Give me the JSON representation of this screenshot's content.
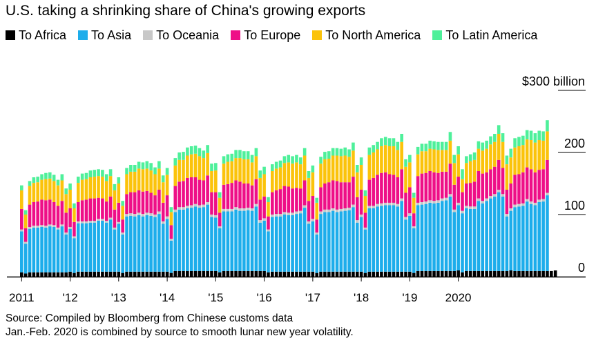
{
  "title": "U.S. taking a shrinking share of China's growing exports",
  "legend": [
    {
      "label": "To Africa",
      "color": "#000000"
    },
    {
      "label": "To Asia",
      "color": "#1dadeb"
    },
    {
      "label": "To Oceania",
      "color": "#c8c8c8"
    },
    {
      "label": "To Europe",
      "color": "#ee0f87"
    },
    {
      "label": "To North America",
      "color": "#fbc30b"
    },
    {
      "label": "To Latin America",
      "color": "#4ef09a"
    }
  ],
  "source_lines": [
    "Source: Compiled by Bloomberg from Chinese customs data",
    "Jan.-Feb. 2020 is combined by source to smooth lunar new year volatility."
  ],
  "chart_data": {
    "type": "bar",
    "stacked": true,
    "unit": "$ billion",
    "y_tick_labels": [
      "0",
      "100",
      "200",
      "$300 billion"
    ],
    "y_ticks": [
      0,
      100,
      200,
      300
    ],
    "ylim": [
      0,
      310
    ],
    "x_tick_labels": [
      "2011",
      "'12",
      "'13",
      "'14",
      "'15",
      "'16",
      "'17",
      "'18",
      "'19",
      "2020"
    ],
    "x_tick_years": [
      2011,
      2012,
      2013,
      2014,
      2015,
      2016,
      2017,
      2018,
      2019,
      2020
    ],
    "start_year": 2011,
    "start_month": 1,
    "grid": false,
    "legend_position": "top",
    "series": [
      {
        "name": "To Africa",
        "color": "#000000",
        "values": [
          7,
          5,
          7,
          7,
          7,
          7,
          7,
          7,
          7,
          7,
          7,
          7,
          8,
          6,
          8,
          8,
          8,
          8,
          8,
          8,
          8,
          8,
          8,
          8,
          8,
          6,
          8,
          8,
          8,
          8,
          8,
          8,
          8,
          8,
          8,
          8,
          8,
          6,
          9,
          9,
          9,
          9,
          9,
          9,
          9,
          9,
          9,
          9,
          9,
          7,
          9,
          9,
          9,
          9,
          9,
          9,
          9,
          9,
          9,
          9,
          9,
          7,
          8,
          8,
          8,
          8,
          8,
          8,
          8,
          8,
          8,
          8,
          8,
          6,
          8,
          8,
          8,
          8,
          8,
          8,
          8,
          8,
          8,
          8,
          8,
          6,
          8,
          8,
          8,
          8,
          8,
          8,
          8,
          8,
          8,
          8,
          8,
          6,
          9,
          9,
          9,
          9,
          9,
          9,
          9,
          9,
          9,
          9,
          10,
          7,
          9,
          9,
          9,
          9,
          9,
          9,
          9,
          9,
          9,
          9,
          9,
          10,
          9,
          9,
          9,
          9,
          9,
          9,
          9,
          9,
          9,
          9,
          10
        ]
      },
      {
        "name": "To Asia",
        "color": "#1dadeb",
        "values": [
          66,
          48,
          70,
          72,
          72,
          73,
          72,
          74,
          73,
          69,
          74,
          61,
          69,
          56,
          78,
          78,
          78,
          79,
          79,
          82,
          82,
          79,
          84,
          68,
          77,
          62,
          89,
          90,
          89,
          91,
          89,
          91,
          90,
          88,
          93,
          77,
          85,
          52,
          95,
          99,
          99,
          101,
          102,
          104,
          102,
          103,
          107,
          87,
          86,
          71,
          96,
          96,
          96,
          99,
          97,
          97,
          98,
          97,
          104,
          78,
          81,
          66,
          88,
          89,
          89,
          92,
          91,
          91,
          93,
          94,
          103,
          77,
          81,
          62,
          93,
          96,
          96,
          98,
          96,
          97,
          98,
          99,
          104,
          79,
          88,
          70,
          102,
          102,
          105,
          106,
          107,
          107,
          107,
          105,
          114,
          84,
          90,
          72,
          106,
          107,
          108,
          110,
          109,
          110,
          113,
          114,
          120,
          95,
          105,
          95,
          101,
          100,
          100,
          113,
          109,
          113,
          117,
          120,
          127,
          120,
          88,
          96,
          103,
          104,
          105,
          112,
          108,
          106,
          111,
          112,
          122
        ]
      },
      {
        "name": "To Oceania",
        "color": "#c8c8c8",
        "values": [
          3,
          3,
          3,
          3,
          3,
          3,
          3,
          3,
          3,
          3,
          3,
          3,
          3,
          3,
          3,
          3,
          3,
          3,
          3,
          3,
          3,
          3,
          3,
          3,
          3,
          3,
          4,
          4,
          4,
          4,
          4,
          4,
          4,
          4,
          4,
          4,
          4,
          3,
          4,
          4,
          4,
          4,
          4,
          4,
          4,
          4,
          4,
          4,
          4,
          3,
          4,
          4,
          4,
          4,
          4,
          4,
          4,
          4,
          4,
          4,
          4,
          3,
          4,
          4,
          4,
          4,
          4,
          4,
          4,
          4,
          4,
          4,
          4,
          3,
          4,
          4,
          4,
          4,
          4,
          4,
          4,
          4,
          4,
          4,
          4,
          3,
          4,
          4,
          4,
          4,
          4,
          4,
          4,
          4,
          4,
          4,
          4,
          3,
          4,
          4,
          4,
          4,
          4,
          4,
          4,
          4,
          4,
          4,
          4,
          4,
          4,
          4,
          4,
          4,
          4,
          4,
          4,
          4,
          4,
          4,
          4,
          4,
          4,
          4,
          4,
          4,
          4,
          4,
          4,
          4,
          4
        ]
      },
      {
        "name": "To Europe",
        "color": "#ee0f87",
        "values": [
          33,
          22,
          36,
          38,
          39,
          41,
          41,
          40,
          37,
          35,
          38,
          32,
          30,
          23,
          31,
          34,
          35,
          36,
          36,
          34,
          33,
          31,
          34,
          29,
          31,
          21,
          32,
          34,
          35,
          36,
          36,
          35,
          33,
          31,
          35,
          30,
          34,
          22,
          38,
          41,
          42,
          45,
          45,
          43,
          41,
          39,
          43,
          36,
          37,
          22,
          39,
          40,
          42,
          43,
          43,
          40,
          39,
          37,
          40,
          33,
          35,
          21,
          36,
          38,
          40,
          42,
          42,
          39,
          38,
          36,
          40,
          33,
          37,
          21,
          39,
          42,
          44,
          45,
          46,
          43,
          42,
          41,
          45,
          37,
          40,
          24,
          42,
          45,
          47,
          49,
          49,
          46,
          45,
          43,
          47,
          39,
          42,
          21,
          43,
          46,
          46,
          47,
          46,
          44,
          43,
          42,
          49,
          40,
          42,
          30,
          36,
          38,
          40,
          44,
          44,
          42,
          43,
          44,
          48,
          42,
          39,
          40,
          48,
          48,
          50,
          51,
          52,
          49,
          48,
          48,
          53
        ]
      },
      {
        "name": "To North America",
        "color": "#fbc30b",
        "values": [
          30,
          22,
          30,
          31,
          31,
          32,
          34,
          34,
          34,
          33,
          33,
          30,
          30,
          22,
          31,
          33,
          33,
          34,
          35,
          35,
          35,
          33,
          33,
          31,
          31,
          22,
          32,
          33,
          33,
          35,
          36,
          36,
          36,
          34,
          34,
          33,
          33,
          21,
          33,
          35,
          34,
          36,
          37,
          38,
          38,
          36,
          36,
          34,
          35,
          24,
          34,
          36,
          35,
          36,
          38,
          39,
          39,
          37,
          37,
          35,
          36,
          23,
          34,
          35,
          35,
          37,
          39,
          40,
          41,
          39,
          40,
          37,
          38,
          27,
          38,
          39,
          38,
          40,
          41,
          42,
          43,
          41,
          42,
          40,
          40,
          27,
          40,
          41,
          41,
          43,
          44,
          45,
          46,
          44,
          44,
          42,
          40,
          25,
          35,
          36,
          35,
          36,
          37,
          37,
          35,
          35,
          37,
          35,
          36,
          21,
          33,
          35,
          35,
          36,
          37,
          38,
          40,
          40,
          42,
          42,
          41,
          42,
          44,
          45,
          44,
          45,
          47,
          48,
          48,
          46,
          46
        ]
      },
      {
        "name": "To Latin America",
        "color": "#4ef09a",
        "values": [
          8,
          7,
          8,
          9,
          9,
          9,
          10,
          10,
          10,
          9,
          10,
          9,
          10,
          8,
          10,
          10,
          10,
          11,
          11,
          11,
          11,
          11,
          11,
          10,
          10,
          8,
          10,
          11,
          11,
          11,
          11,
          12,
          12,
          11,
          12,
          11,
          11,
          8,
          12,
          12,
          13,
          13,
          13,
          13,
          13,
          12,
          13,
          12,
          12,
          9,
          12,
          12,
          12,
          13,
          13,
          13,
          13,
          12,
          13,
          12,
          12,
          8,
          11,
          11,
          11,
          11,
          12,
          12,
          12,
          11,
          12,
          11,
          11,
          8,
          11,
          12,
          12,
          12,
          12,
          12,
          13,
          12,
          13,
          12,
          12,
          9,
          12,
          12,
          12,
          13,
          13,
          13,
          13,
          13,
          13,
          12,
          12,
          8,
          12,
          12,
          12,
          13,
          13,
          13,
          13,
          13,
          14,
          13,
          13,
          16,
          11,
          11,
          12,
          12,
          13,
          13,
          13,
          13,
          14,
          14,
          14,
          14,
          15,
          15,
          15,
          15,
          15,
          15,
          15,
          15,
          18
        ]
      }
    ]
  }
}
